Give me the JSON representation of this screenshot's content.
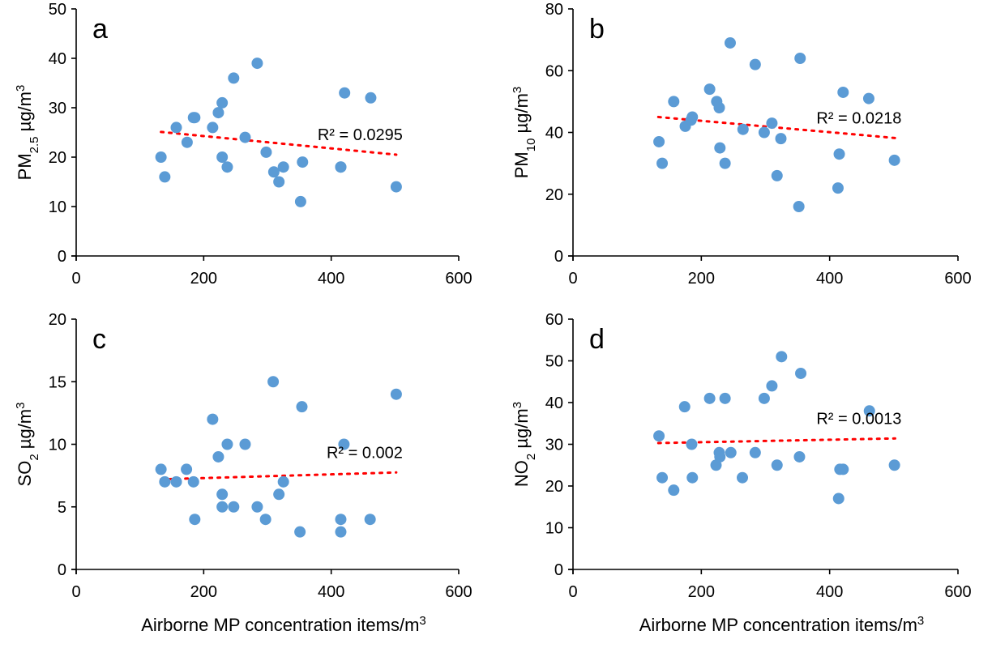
{
  "chart_data": [
    {
      "type": "scatter",
      "panel_label": "a",
      "ylabel": "PM2.5 µg/m3",
      "ylabel_parts": {
        "main": "PM",
        "sub": "2.5",
        "unit": " µg/m",
        "sup": "3"
      },
      "xlabel": "",
      "xlim": [
        0,
        600
      ],
      "ylim": [
        0,
        50
      ],
      "xticks": [
        0,
        200,
        400,
        600
      ],
      "yticks": [
        0,
        10,
        20,
        30,
        40,
        50
      ],
      "r2_label": "R² = 0.0295",
      "trendline": {
        "x": [
          133,
          502
        ],
        "y": [
          25.1,
          20.5
        ],
        "color": "#FF0000"
      },
      "marker_color": "#5B9BD5",
      "points": {
        "x": [
          133,
          139,
          157,
          174,
          184,
          186,
          214,
          223,
          229,
          229,
          237,
          247,
          265,
          284,
          298,
          310,
          318,
          325,
          352,
          355,
          415,
          415,
          421,
          462,
          502
        ],
        "y": [
          20,
          16,
          26,
          23,
          28,
          28,
          26,
          29,
          31,
          20,
          18,
          36,
          24,
          39,
          21,
          17,
          15,
          18,
          11,
          19,
          18,
          18,
          33,
          32,
          14
        ]
      }
    },
    {
      "type": "scatter",
      "panel_label": "b",
      "ylabel": "PM10 µg/m3",
      "ylabel_parts": {
        "main": "PM",
        "sub": "10",
        "unit": " µg/m",
        "sup": "3"
      },
      "xlabel": "",
      "xlim": [
        0,
        600
      ],
      "ylim": [
        0,
        80
      ],
      "xticks": [
        0,
        200,
        400,
        600
      ],
      "yticks": [
        0,
        20,
        40,
        60,
        80
      ],
      "r2_label": "R² = 0.0218",
      "trendline": {
        "x": [
          133,
          502
        ],
        "y": [
          45.0,
          38.2
        ],
        "color": "#FF0000"
      },
      "marker_color": "#5B9BD5",
      "points": {
        "x": [
          134,
          139,
          157,
          175,
          184,
          186,
          213,
          224,
          228,
          229,
          237,
          245,
          265,
          284,
          298,
          310,
          318,
          324,
          352,
          354,
          413,
          415,
          421,
          461,
          501
        ],
        "y": [
          37,
          30,
          50,
          42,
          44,
          45,
          54,
          50,
          48,
          35,
          30,
          69,
          41,
          62,
          40,
          43,
          26,
          38,
          16,
          64,
          22,
          33,
          53,
          51,
          31
        ]
      }
    },
    {
      "type": "scatter",
      "panel_label": "c",
      "ylabel": "SO2 µg/m3",
      "ylabel_parts": {
        "main": "SO",
        "sub": "2",
        "unit": " µg/m",
        "sup": "3"
      },
      "xlabel": "Airborne MP concentration items/m3",
      "xlabel_parts": {
        "main": "Airborne MP concentration items/m",
        "sup": "3"
      },
      "xlim": [
        0,
        600
      ],
      "ylim": [
        0,
        20
      ],
      "xticks": [
        0,
        200,
        400,
        600
      ],
      "yticks": [
        0,
        5,
        10,
        15,
        20
      ],
      "r2_label": "R² = 0.002",
      "trendline": {
        "x": [
          133,
          502
        ],
        "y": [
          7.2,
          7.75
        ],
        "color": "#FF0000"
      },
      "marker_color": "#5B9BD5",
      "points": {
        "x": [
          133,
          139,
          157,
          173,
          184,
          186,
          214,
          223,
          229,
          229,
          237,
          247,
          265,
          284,
          297,
          309,
          318,
          325,
          351,
          354,
          415,
          415,
          420,
          461,
          502
        ],
        "y": [
          8,
          7,
          7,
          8,
          7,
          4,
          12,
          9,
          6,
          5,
          10,
          5,
          10,
          5,
          4,
          15,
          6,
          7,
          3,
          13,
          3,
          4,
          10,
          4,
          14
        ]
      }
    },
    {
      "type": "scatter",
      "panel_label": "d",
      "ylabel": "NO2 µg/m3",
      "ylabel_parts": {
        "main": "NO",
        "sub": "2",
        "unit": " µg/m",
        "sup": "3"
      },
      "xlabel": "Airborne MP concentration items/m3",
      "xlabel_parts": {
        "main": "Airborne MP concentration items/m",
        "sup": "3"
      },
      "xlim": [
        0,
        600
      ],
      "ylim": [
        0,
        60
      ],
      "xticks": [
        0,
        200,
        400,
        600
      ],
      "yticks": [
        0,
        10,
        20,
        30,
        40,
        50,
        60
      ],
      "r2_label": "R² = 0.0013",
      "trendline": {
        "x": [
          133,
          502
        ],
        "y": [
          30.3,
          31.4
        ],
        "color": "#FF0000"
      },
      "marker_color": "#5B9BD5",
      "points": {
        "x": [
          134,
          139,
          157,
          174,
          185,
          186,
          213,
          223,
          228,
          229,
          237,
          246,
          264,
          284,
          298,
          310,
          318,
          325,
          353,
          355,
          414,
          416,
          421,
          462,
          501
        ],
        "y": [
          32,
          22,
          19,
          39,
          30,
          22,
          41,
          25,
          28,
          27,
          41,
          28,
          22,
          28,
          41,
          44,
          25,
          51,
          27,
          47,
          17,
          24,
          24,
          38,
          25
        ]
      }
    }
  ]
}
